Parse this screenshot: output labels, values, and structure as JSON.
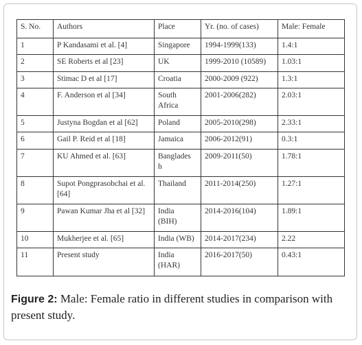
{
  "table": {
    "header": [
      "S. No.",
      "Authors",
      "Place",
      "Yr. (no. of cases)",
      "Male: Female"
    ],
    "rows": [
      [
        "1",
        "P Kandasami et al. [4]",
        "Singapore",
        "1994-1999(133)",
        "1.4:1"
      ],
      [
        "2",
        "SE Roberts et al [23]",
        "UK",
        "1999-2010 (10589)",
        "1.03:1"
      ],
      [
        "3",
        "Stimac D et al [17]",
        "Croatia",
        "2000-2009 (922)",
        "1.3:1"
      ],
      [
        "4",
        "F. Anderson et al [34]",
        "South\nAfrica",
        "2001-2006(282)",
        "2.03:1"
      ],
      [
        "5",
        "Justyna Bogdan et al [62]",
        "Poland",
        "2005-2010(298)",
        "2.33:1"
      ],
      [
        "6",
        "Gail P. Reid et al [18]",
        "Jamaica",
        "2006-2012(91)",
        "0.3:1"
      ],
      [
        "7",
        "KU Ahmed et al. [63]",
        "Banglades\nh",
        "2009-2011(50)",
        "1.78:1"
      ],
      [
        "8",
        "Supot Pongprasobchai et al.\n[64]",
        "Thailand",
        "2011-2014(250)",
        "1.27:1"
      ],
      [
        "9",
        "Pawan Kumar Jha et al [32]",
        "India\n(BIH)",
        "2014-2016(104)",
        "1.89:1"
      ],
      [
        "10",
        "Mukherjee et al. [65]",
        "India (WB)",
        "2014-2017(234)",
        "2.22"
      ],
      [
        "11",
        "Present study",
        "India\n(HAR)",
        "2016-2017(50)",
        "0.43:1"
      ]
    ]
  },
  "caption": {
    "label": "Figure 2:",
    "text": "Male: Female ratio in different studies in comparison with present study."
  }
}
